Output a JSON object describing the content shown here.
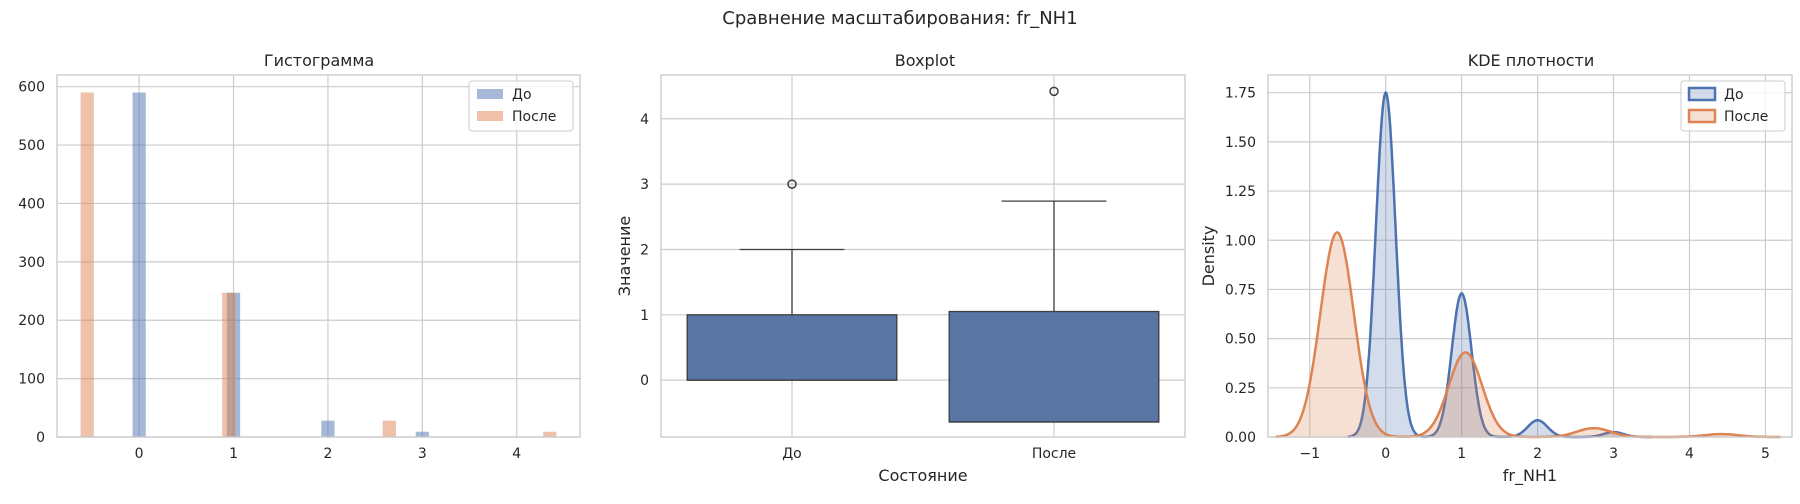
{
  "suptitle": "Сравнение масштабирования: fr_NH1",
  "colors": {
    "before": "#4c72b0",
    "after": "#dd8452"
  },
  "chart_data": [
    {
      "type": "bar",
      "subtype": "histogram",
      "title": "Гистограмма",
      "xlabel": "",
      "ylabel": "",
      "xlim": [
        -0.87,
        4.67
      ],
      "ylim": [
        0,
        620
      ],
      "xticks": [
        0,
        1,
        2,
        3,
        4
      ],
      "yticks": [
        0,
        100,
        200,
        300,
        400,
        500,
        600
      ],
      "legend": {
        "position": "top-right"
      },
      "series": [
        {
          "name": "До",
          "color": "#4c72b0",
          "opacity": 0.5,
          "bins": [
            {
              "x": 0.0,
              "value": 590
            },
            {
              "x": 1.0,
              "value": 247
            },
            {
              "x": 2.0,
              "value": 28
            },
            {
              "x": 3.0,
              "value": 9
            }
          ]
        },
        {
          "name": "После",
          "color": "#dd8452",
          "opacity": 0.5,
          "bins": [
            {
              "x": -0.55,
              "value": 590
            },
            {
              "x": 0.95,
              "value": 247
            },
            {
              "x": 2.65,
              "value": 28
            },
            {
              "x": 4.35,
              "value": 9
            }
          ]
        }
      ],
      "bin_width": 0.14,
      "grid": true
    },
    {
      "type": "box",
      "title": "Boxplot",
      "xlabel": "Состояние",
      "ylabel": "Значение",
      "ylim": [
        -0.87,
        4.67
      ],
      "yticks": [
        0,
        1,
        2,
        3,
        4
      ],
      "categories": [
        "До",
        "После"
      ],
      "color": "#5975a4",
      "boxes": [
        {
          "category": "До",
          "whisker_low": 0,
          "q1": 0,
          "median": 0,
          "q3": 1,
          "whisker_high": 2,
          "outliers": [
            3
          ]
        },
        {
          "category": "После",
          "whisker_low": -0.64,
          "q1": -0.64,
          "median": -0.64,
          "q3": 1.05,
          "whisker_high": 2.74,
          "outliers": [
            4.42
          ]
        }
      ],
      "grid": true
    },
    {
      "type": "area",
      "subtype": "kde",
      "title": "KDE плотности",
      "xlabel": "fr_NH1",
      "ylabel": "Density",
      "xlim": [
        -1.55,
        5.35
      ],
      "ylim": [
        0,
        1.84
      ],
      "xticks": [
        -1,
        0,
        1,
        2,
        3,
        4,
        5
      ],
      "yticks": [
        0.0,
        0.25,
        0.5,
        0.75,
        1.0,
        1.25,
        1.5,
        1.75
      ],
      "legend": {
        "position": "top-right"
      },
      "series": [
        {
          "name": "До",
          "color": "#4c72b0",
          "range": [
            -0.5,
            3.5
          ],
          "components": [
            {
              "mu": 0,
              "sigma": 0.13,
              "amp": 1.75
            },
            {
              "mu": 1,
              "sigma": 0.13,
              "amp": 0.73
            },
            {
              "mu": 2,
              "sigma": 0.13,
              "amp": 0.085
            },
            {
              "mu": 3,
              "sigma": 0.13,
              "amp": 0.025
            }
          ]
        },
        {
          "name": "После",
          "color": "#dd8452",
          "range": [
            -1.45,
            5.2
          ],
          "components": [
            {
              "mu": -0.64,
              "sigma": 0.22,
              "amp": 1.04
            },
            {
              "mu": 1.05,
              "sigma": 0.22,
              "amp": 0.43
            },
            {
              "mu": 2.74,
              "sigma": 0.22,
              "amp": 0.045
            },
            {
              "mu": 4.42,
              "sigma": 0.22,
              "amp": 0.015
            }
          ]
        }
      ],
      "grid": true
    }
  ]
}
